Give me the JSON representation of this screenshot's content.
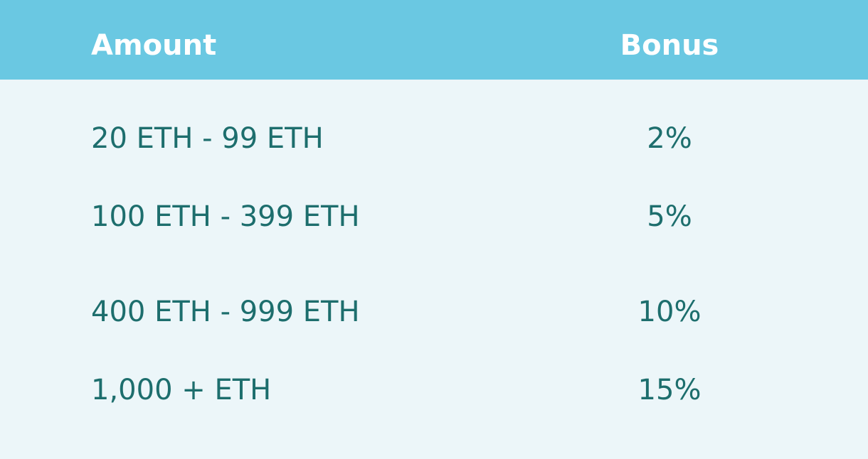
{
  "table": {
    "headers": {
      "amount": "Amount",
      "bonus": "Bonus"
    },
    "rows": [
      {
        "amount": "20 ETH - 99 ETH",
        "bonus": "2%"
      },
      {
        "amount": "100 ETH - 399 ETH",
        "bonus": "5%"
      },
      {
        "amount": "400 ETH - 999 ETH",
        "bonus": "10%"
      },
      {
        "amount": "1,000 + ETH",
        "bonus": "15%"
      }
    ]
  },
  "colors": {
    "header_background": "#6ac8e2",
    "body_background": "#ecf6f9",
    "header_text": "#ffffff",
    "row_text": "#1d6e6d"
  }
}
